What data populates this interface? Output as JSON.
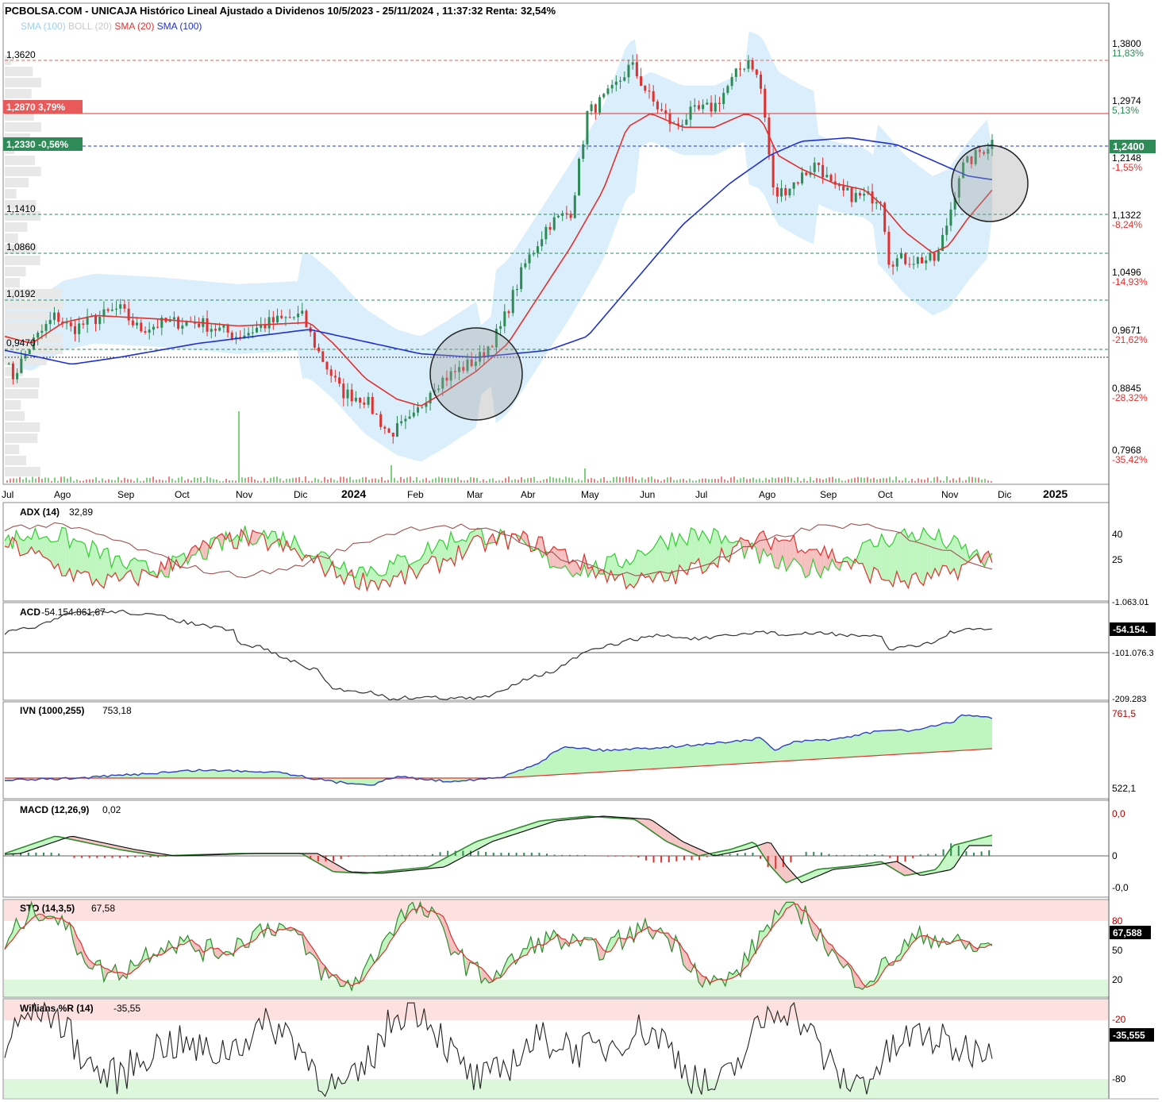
{
  "header": {
    "title": "PCBOLSA.COM - UNICAJA Histórico Lineal Ajustado a Dividenos 10/5/2023 - 25/11/2024 , 11:37:32 Renta: 32,54%",
    "legend": [
      {
        "label": "SMA (100)",
        "color": "#9ecff0"
      },
      {
        "label": "BOLL (20)",
        "color": "#d0d0d0"
      },
      {
        "label": "SMA (20)",
        "color": "#e03030"
      },
      {
        "label": "SMA (100)",
        "color": "#2030d0"
      }
    ]
  },
  "colors": {
    "price_up": "#2e8b57",
    "price_down": "#e03030",
    "sma20": "#e03030",
    "sma100": "#2030d0",
    "bollinger": "#d4ecfa",
    "green_fill": "#bff5bf",
    "red_fill": "#f5c0c0",
    "current_badge": "#2e8b57",
    "resistance_badge": "#e85a5a"
  },
  "price_panel": {
    "current_price_badge": "1,2400",
    "levels_left": [
      {
        "label": "1,3620",
        "style": "red-dashed"
      },
      {
        "label": "1,2870  3,79%",
        "style": "red-badge"
      },
      {
        "label": "1,2330  -0,56%",
        "style": "green-badge"
      },
      {
        "label": "1,1410",
        "style": "green-dashed"
      },
      {
        "label": "1,0860",
        "style": "green-dashed"
      },
      {
        "label": "1,0192",
        "style": "green-dashed"
      },
      {
        "label": "0,9470",
        "style": "green-dashed"
      }
    ],
    "right_axis": [
      {
        "price": "1,3800",
        "pct": "11,83%",
        "pct_color": "#2e8b57"
      },
      {
        "price": "1,2974",
        "pct": "5,13%",
        "pct_color": "#2e8b57"
      },
      {
        "price": "1,2148",
        "pct": "-1,55%",
        "pct_color": "#e03030"
      },
      {
        "price": "1,1322",
        "pct": "-8,24%",
        "pct_color": "#e03030"
      },
      {
        "price": "1,0496",
        "pct": "-14,93%",
        "pct_color": "#e03030"
      },
      {
        "price": "0,9671",
        "pct": "-21,62%",
        "pct_color": "#e03030"
      },
      {
        "price": "0,8845",
        "pct": "-28,32%",
        "pct_color": "#e03030"
      },
      {
        "price": "0,7968",
        "pct": "-35,42%",
        "pct_color": "#e03030"
      }
    ],
    "x_axis": [
      "Jul",
      "Ago",
      "Sep",
      "Oct",
      "Nov",
      "Dic",
      "2024",
      "Feb",
      "Mar",
      "Abr",
      "May",
      "Jun",
      "Jul",
      "Ago",
      "Sep",
      "Oct",
      "Nov",
      "Dic",
      "2025"
    ]
  },
  "panels": {
    "adx": {
      "title": "ADX (14)",
      "value": "32,89",
      "ticks": [
        "40",
        "25"
      ],
      "top_tick": "-1.063.01"
    },
    "acd": {
      "title": "ACD",
      "value": "-54.154.861,67",
      "badge": "-54.154.",
      "ticks": [
        "-101.076.3"
      ],
      "bottom_tick": "-209.283"
    },
    "ivn": {
      "title": "IVN (1000,255)",
      "value": "753,18",
      "ticks": [
        "761,5",
        "522,1"
      ]
    },
    "macd": {
      "title": "MACD (12,26,9)",
      "value": "0,02",
      "ticks": [
        "0,0",
        "0",
        "-0,0"
      ]
    },
    "sto": {
      "title": "STO (14,3,5)",
      "value": "67,58",
      "badge": "67,588",
      "ticks": [
        "80",
        "50",
        "20"
      ]
    },
    "williams": {
      "title": "Willians %R (14)",
      "value": "-35,55",
      "badge": "-35,555",
      "ticks": [
        "-20",
        "-80"
      ]
    }
  },
  "chart_data": {
    "type": "line",
    "title": "PCBOLSA.COM - UNICAJA Histórico Lineal Ajustado a Dividenos 10/5/2023 - 25/11/2024 , 11:37:32 Renta: 32,54%",
    "x": [
      "2023-07",
      "2023-08",
      "2023-09",
      "2023-10",
      "2023-11",
      "2023-12",
      "2024-01",
      "2024-02",
      "2024-03",
      "2024-04",
      "2024-05",
      "2024-06",
      "2024-07",
      "2024-08",
      "2024-09",
      "2024-10",
      "2024-11"
    ],
    "ylim": [
      0.78,
      1.4
    ],
    "series": [
      {
        "name": "SMA (20)",
        "values": [
          0.91,
          0.97,
          0.98,
          0.96,
          0.96,
          0.98,
          0.89,
          0.84,
          0.92,
          1.02,
          1.17,
          1.31,
          1.29,
          1.25,
          1.17,
          1.12,
          1.07
        ]
      },
      {
        "name": "SMA (100)",
        "values": [
          0.94,
          0.91,
          0.92,
          0.93,
          0.95,
          0.97,
          0.95,
          0.93,
          0.91,
          0.92,
          0.98,
          1.09,
          1.18,
          1.23,
          1.24,
          1.23,
          1.2
        ]
      },
      {
        "name": "Price",
        "values": [
          0.9,
          0.97,
          1.0,
          0.97,
          0.97,
          1.0,
          0.86,
          0.82,
          0.94,
          1.08,
          1.28,
          1.31,
          1.36,
          1.14,
          1.18,
          1.06,
          1.24
        ]
      }
    ],
    "grid": false,
    "legend": "top-left"
  }
}
